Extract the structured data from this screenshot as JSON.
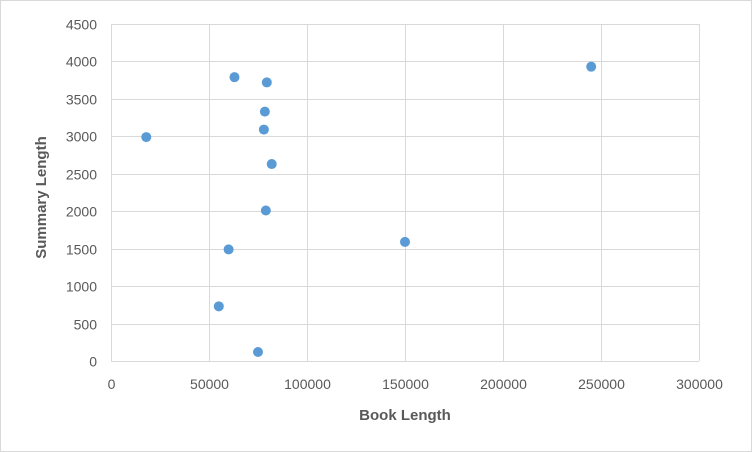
{
  "chart_data": {
    "type": "scatter",
    "title": "",
    "xlabel": "Book Length",
    "ylabel": "Summary Length",
    "xlim": [
      0,
      300000
    ],
    "ylim": [
      0,
      4500
    ],
    "x_ticks": [
      0,
      50000,
      100000,
      150000,
      200000,
      250000,
      300000
    ],
    "y_ticks": [
      0,
      500,
      1000,
      1500,
      2000,
      2500,
      3000,
      3500,
      4000,
      4500
    ],
    "x_tick_labels": [
      "0",
      "50000",
      "100000",
      "150000",
      "200000",
      "250000",
      "300000"
    ],
    "y_tick_labels": [
      "0",
      "500",
      "1000",
      "1500",
      "2000",
      "2500",
      "3000",
      "3500",
      "4000",
      "4500"
    ],
    "grid": true,
    "legend": "none",
    "series": [
      {
        "color": "#5b9bd5",
        "points": [
          {
            "x": 18000,
            "y": 2990
          },
          {
            "x": 55000,
            "y": 730
          },
          {
            "x": 60000,
            "y": 1490
          },
          {
            "x": 63000,
            "y": 3790
          },
          {
            "x": 75000,
            "y": 120
          },
          {
            "x": 78000,
            "y": 3090
          },
          {
            "x": 78500,
            "y": 3330
          },
          {
            "x": 79000,
            "y": 2010
          },
          {
            "x": 79500,
            "y": 3720
          },
          {
            "x": 82000,
            "y": 2630
          },
          {
            "x": 150000,
            "y": 1590
          },
          {
            "x": 245000,
            "y": 3930
          }
        ]
      }
    ]
  }
}
